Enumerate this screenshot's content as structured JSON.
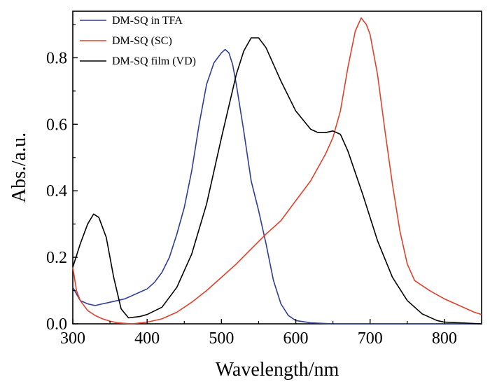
{
  "chart_data": {
    "type": "line",
    "xlabel": "Wavelength/nm",
    "ylabel": "Abs./a.u.",
    "xlim": [
      300,
      850
    ],
    "ylim": [
      0,
      0.94
    ],
    "xticks": [
      300,
      400,
      500,
      600,
      700,
      800
    ],
    "xtick_labels": [
      "300",
      "400",
      "500",
      "600",
      "700",
      "800"
    ],
    "yticks": [
      0.0,
      0.2,
      0.4,
      0.6,
      0.8
    ],
    "ytick_labels": [
      "0.0",
      "0.2",
      "0.4",
      "0.6",
      "0.8"
    ],
    "grid": false,
    "legend_position": "top-left",
    "series": [
      {
        "name": "DM-SQ in TFA",
        "color": "#2e3d96",
        "points": [
          [
            300,
            0.11
          ],
          [
            310,
            0.07
          ],
          [
            320,
            0.06
          ],
          [
            330,
            0.055
          ],
          [
            340,
            0.06
          ],
          [
            350,
            0.065
          ],
          [
            360,
            0.07
          ],
          [
            370,
            0.075
          ],
          [
            380,
            0.085
          ],
          [
            390,
            0.095
          ],
          [
            400,
            0.105
          ],
          [
            410,
            0.125
          ],
          [
            420,
            0.155
          ],
          [
            430,
            0.2
          ],
          [
            440,
            0.27
          ],
          [
            450,
            0.35
          ],
          [
            460,
            0.46
          ],
          [
            470,
            0.6
          ],
          [
            480,
            0.72
          ],
          [
            490,
            0.785
          ],
          [
            500,
            0.815
          ],
          [
            505,
            0.825
          ],
          [
            510,
            0.815
          ],
          [
            515,
            0.78
          ],
          [
            520,
            0.72
          ],
          [
            530,
            0.58
          ],
          [
            540,
            0.43
          ],
          [
            550,
            0.34
          ],
          [
            560,
            0.24
          ],
          [
            570,
            0.13
          ],
          [
            580,
            0.06
          ],
          [
            590,
            0.025
          ],
          [
            600,
            0.01
          ],
          [
            620,
            0.003
          ],
          [
            650,
            0.0
          ],
          [
            700,
            0.0
          ],
          [
            850,
            0.0
          ]
        ]
      },
      {
        "name": "DM-SQ (SC)",
        "color": "#e0412b",
        "points": [
          [
            300,
            0.17
          ],
          [
            305,
            0.1
          ],
          [
            310,
            0.07
          ],
          [
            320,
            0.04
          ],
          [
            330,
            0.025
          ],
          [
            340,
            0.015
          ],
          [
            350,
            0.008
          ],
          [
            360,
            0.003
          ],
          [
            380,
            0.0
          ],
          [
            400,
            0.005
          ],
          [
            420,
            0.015
          ],
          [
            440,
            0.035
          ],
          [
            460,
            0.065
          ],
          [
            480,
            0.1
          ],
          [
            500,
            0.14
          ],
          [
            520,
            0.18
          ],
          [
            540,
            0.225
          ],
          [
            560,
            0.27
          ],
          [
            580,
            0.31
          ],
          [
            600,
            0.37
          ],
          [
            620,
            0.43
          ],
          [
            630,
            0.47
          ],
          [
            640,
            0.51
          ],
          [
            650,
            0.56
          ],
          [
            660,
            0.64
          ],
          [
            670,
            0.77
          ],
          [
            680,
            0.88
          ],
          [
            688,
            0.92
          ],
          [
            695,
            0.9
          ],
          [
            700,
            0.87
          ],
          [
            710,
            0.75
          ],
          [
            720,
            0.58
          ],
          [
            730,
            0.42
          ],
          [
            740,
            0.28
          ],
          [
            750,
            0.18
          ],
          [
            760,
            0.13
          ],
          [
            780,
            0.1
          ],
          [
            800,
            0.075
          ],
          [
            820,
            0.055
          ],
          [
            840,
            0.035
          ],
          [
            850,
            0.028
          ]
        ]
      },
      {
        "name": "DM-SQ film (VD)",
        "color": "#000000",
        "points": [
          [
            300,
            0.17
          ],
          [
            310,
            0.24
          ],
          [
            320,
            0.3
          ],
          [
            328,
            0.33
          ],
          [
            335,
            0.32
          ],
          [
            345,
            0.26
          ],
          [
            355,
            0.14
          ],
          [
            365,
            0.045
          ],
          [
            375,
            0.018
          ],
          [
            390,
            0.022
          ],
          [
            400,
            0.028
          ],
          [
            420,
            0.05
          ],
          [
            440,
            0.11
          ],
          [
            460,
            0.21
          ],
          [
            480,
            0.36
          ],
          [
            500,
            0.56
          ],
          [
            520,
            0.75
          ],
          [
            530,
            0.82
          ],
          [
            540,
            0.86
          ],
          [
            550,
            0.86
          ],
          [
            560,
            0.83
          ],
          [
            580,
            0.73
          ],
          [
            600,
            0.64
          ],
          [
            620,
            0.585
          ],
          [
            630,
            0.575
          ],
          [
            640,
            0.575
          ],
          [
            650,
            0.58
          ],
          [
            660,
            0.57
          ],
          [
            670,
            0.52
          ],
          [
            690,
            0.39
          ],
          [
            710,
            0.25
          ],
          [
            730,
            0.14
          ],
          [
            750,
            0.07
          ],
          [
            770,
            0.03
          ],
          [
            790,
            0.01
          ],
          [
            800,
            0.005
          ],
          [
            850,
            0.0
          ]
        ]
      }
    ]
  }
}
